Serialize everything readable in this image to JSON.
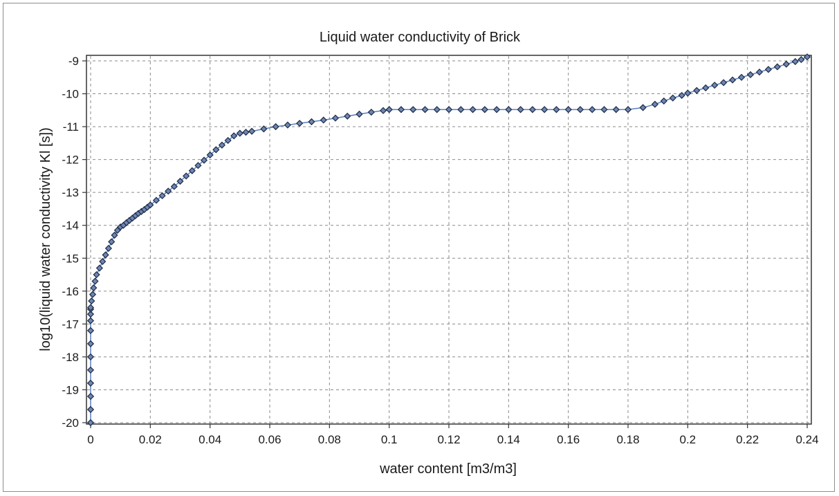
{
  "chart_data": {
    "type": "line",
    "title": "Liquid water conductivity of Brick",
    "xlabel": "water content [m3/m3]",
    "ylabel": "log10(liquid water conductivity Kl [s])",
    "xlim": [
      0,
      0.24
    ],
    "ylim": [
      -20,
      -8.85
    ],
    "xticks": [
      0,
      0.02,
      0.04,
      0.06,
      0.08,
      0.1,
      0.12,
      0.14,
      0.16,
      0.18,
      0.2,
      0.22,
      0.24
    ],
    "xtick_labels": [
      "0",
      "0.02",
      "0.04",
      "0.06",
      "0.08",
      "0.1",
      "0.12",
      "0.14",
      "0.16",
      "0.18",
      "0.2",
      "0.22",
      "0.24"
    ],
    "yticks": [
      -9,
      -10,
      -11,
      -12,
      -13,
      -14,
      -15,
      -16,
      -17,
      -18,
      -19,
      -20
    ],
    "ytick_labels": [
      "-9",
      "-10",
      "-11",
      "-12",
      "-13",
      "-14",
      "-15",
      "-16",
      "-17",
      "-18",
      "-19",
      "-20"
    ],
    "grid": true,
    "line_color": "#5b7fbf",
    "marker_color": "#1c2a44",
    "series": [
      {
        "x": [
          0,
          0,
          0,
          0,
          0,
          0,
          0,
          0,
          0,
          0,
          0,
          0,
          0.0003,
          0.0007,
          0.001,
          0.0015,
          0.002,
          0.003,
          0.004,
          0.005,
          0.006,
          0.007,
          0.008,
          0.009,
          0.01,
          0.011,
          0.012,
          0.013,
          0.014,
          0.015,
          0.016,
          0.017,
          0.018,
          0.019,
          0.02,
          0.022,
          0.024,
          0.026,
          0.028,
          0.03,
          0.032,
          0.034,
          0.036,
          0.038,
          0.04,
          0.042,
          0.044,
          0.046,
          0.048,
          0.05,
          0.052,
          0.054,
          0.058,
          0.062,
          0.066,
          0.07,
          0.074,
          0.078,
          0.082,
          0.086,
          0.09,
          0.094,
          0.098,
          0.1,
          0.104,
          0.108,
          0.112,
          0.116,
          0.12,
          0.124,
          0.128,
          0.132,
          0.136,
          0.14,
          0.144,
          0.148,
          0.152,
          0.156,
          0.16,
          0.164,
          0.168,
          0.172,
          0.176,
          0.18,
          0.185,
          0.189,
          0.192,
          0.195,
          0.198,
          0.2,
          0.203,
          0.206,
          0.209,
          0.212,
          0.215,
          0.218,
          0.221,
          0.224,
          0.227,
          0.23,
          0.233,
          0.236,
          0.238,
          0.24
        ],
        "y": [
          -20,
          -19.6,
          -19.2,
          -18.8,
          -18.4,
          -18,
          -17.6,
          -17.2,
          -16.9,
          -16.7,
          -16.55,
          -16.5,
          -16.3,
          -16.1,
          -15.9,
          -15.7,
          -15.5,
          -15.3,
          -15.1,
          -14.9,
          -14.7,
          -14.5,
          -14.3,
          -14.15,
          -14.05,
          -14.0,
          -13.92,
          -13.85,
          -13.78,
          -13.71,
          -13.64,
          -13.58,
          -13.52,
          -13.45,
          -13.38,
          -13.24,
          -13.1,
          -12.96,
          -12.82,
          -12.66,
          -12.5,
          -12.34,
          -12.18,
          -12.02,
          -11.86,
          -11.7,
          -11.56,
          -11.42,
          -11.28,
          -11.2,
          -11.17,
          -11.14,
          -11.07,
          -11.0,
          -10.95,
          -10.9,
          -10.85,
          -10.8,
          -10.74,
          -10.68,
          -10.62,
          -10.56,
          -10.51,
          -10.48,
          -10.48,
          -10.48,
          -10.48,
          -10.48,
          -10.48,
          -10.48,
          -10.48,
          -10.48,
          -10.48,
          -10.48,
          -10.48,
          -10.48,
          -10.48,
          -10.48,
          -10.48,
          -10.48,
          -10.48,
          -10.48,
          -10.48,
          -10.48,
          -10.42,
          -10.32,
          -10.22,
          -10.13,
          -10.05,
          -9.98,
          -9.9,
          -9.82,
          -9.74,
          -9.66,
          -9.58,
          -9.5,
          -9.42,
          -9.34,
          -9.26,
          -9.18,
          -9.1,
          -9.02,
          -8.96,
          -8.88
        ]
      }
    ]
  }
}
